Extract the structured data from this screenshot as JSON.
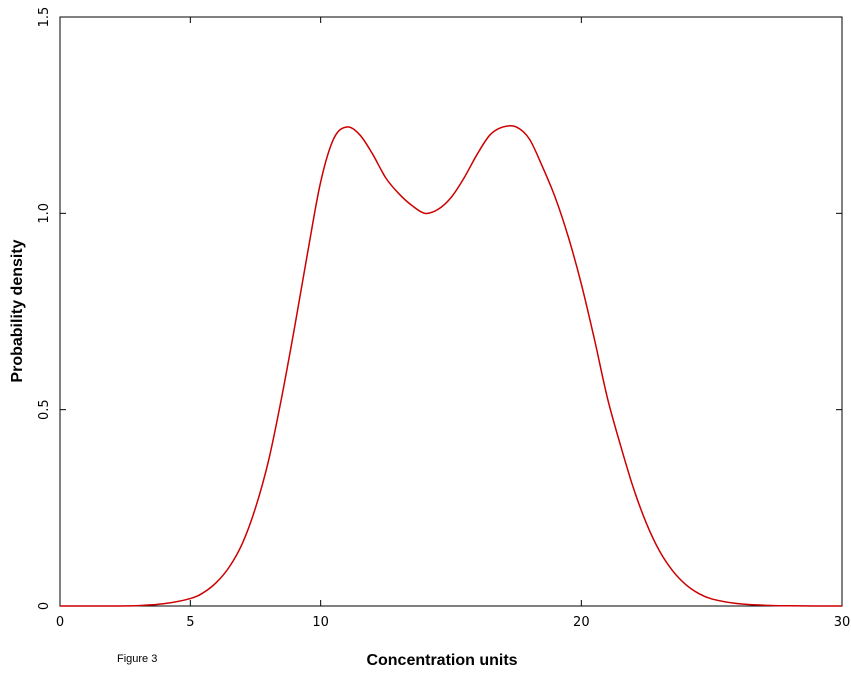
{
  "caption": "Figure 3",
  "chart_data": {
    "type": "line",
    "title": "",
    "xlabel": "Concentration units",
    "ylabel": "Probability density",
    "xlim": [
      0,
      30
    ],
    "ylim": [
      0,
      1.5
    ],
    "x_ticks": [
      {
        "value": 0,
        "label": "0"
      },
      {
        "value": 5,
        "label": "5"
      },
      {
        "value": 10,
        "label": "10"
      },
      {
        "value": 20,
        "label": "20"
      },
      {
        "value": 30,
        "label": "30"
      }
    ],
    "y_ticks": [
      {
        "value": 0,
        "label": "0"
      },
      {
        "value": 0.5,
        "label": "0.5"
      },
      {
        "value": 1.0,
        "label": "1.0"
      },
      {
        "value": 1.5,
        "label": "1.5"
      }
    ],
    "grid": false,
    "legend": "none",
    "line_color": "#cc0000",
    "series": [
      {
        "x": [
          0,
          2,
          3,
          4,
          5,
          5.5,
          6,
          6.5,
          7,
          7.5,
          8,
          8.5,
          9,
          9.5,
          10,
          10.5,
          11,
          11.5,
          12,
          12.5,
          13,
          13.5,
          14,
          14.5,
          15,
          15.5,
          16,
          16.5,
          17,
          17.5,
          18,
          18.5,
          19,
          19.5,
          20,
          20.5,
          21,
          21.5,
          22,
          22.5,
          23,
          23.5,
          24,
          24.5,
          25,
          26,
          27,
          28,
          29,
          30
        ],
        "y": [
          0,
          0,
          0.001,
          0.006,
          0.019,
          0.034,
          0.06,
          0.1,
          0.16,
          0.25,
          0.37,
          0.53,
          0.71,
          0.9,
          1.08,
          1.19,
          1.22,
          1.2,
          1.15,
          1.09,
          1.05,
          1.02,
          1.0,
          1.01,
          1.04,
          1.09,
          1.15,
          1.2,
          1.22,
          1.22,
          1.19,
          1.12,
          1.04,
          0.94,
          0.82,
          0.68,
          0.53,
          0.41,
          0.3,
          0.21,
          0.14,
          0.09,
          0.055,
          0.032,
          0.018,
          0.006,
          0.002,
          0.0005,
          0.0001,
          0
        ]
      }
    ]
  }
}
